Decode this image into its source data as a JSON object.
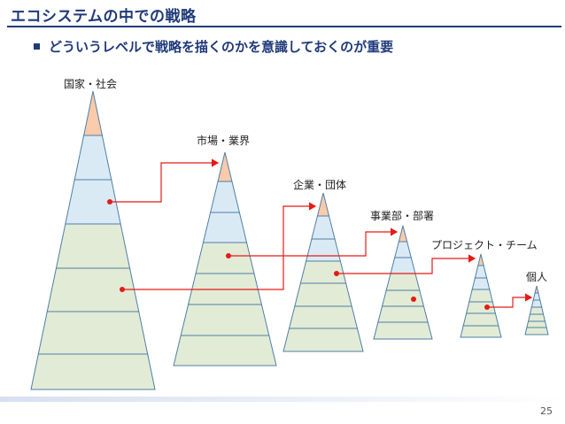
{
  "slide": {
    "title": "エコシステムの中での戦略",
    "bullet": "どういうレベルで戦略を描くのかを意識しておくのが重要",
    "page_number": "25"
  },
  "levels": [
    {
      "label": "国家・社会"
    },
    {
      "label": "市場・業界"
    },
    {
      "label": "企業・団体"
    },
    {
      "label": "事業部・部署"
    },
    {
      "label": "プロジェクト・チーム"
    },
    {
      "label": "個人"
    }
  ],
  "colors": {
    "title": "#1f3a7a",
    "peach": "#f9cbaa",
    "blue": "#daeaf4",
    "green": "#e2ebd5",
    "outline": "#4f7fa8",
    "connector": "#e41b17"
  }
}
